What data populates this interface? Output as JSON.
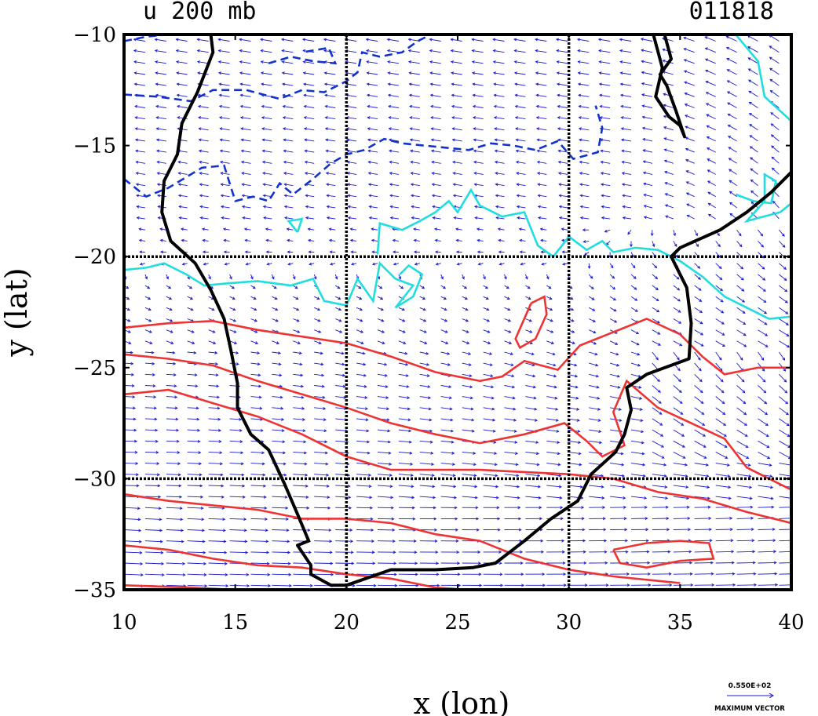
{
  "chart_data": {
    "type": "vector-contour-map",
    "title": "u 200 mb",
    "date_label": "011818",
    "xlabel": "x (lon)",
    "ylabel": "y (lat)",
    "xlim": [
      10,
      40
    ],
    "ylim": [
      -35,
      -10
    ],
    "xticks": [
      10,
      15,
      20,
      25,
      30,
      35,
      40
    ],
    "yticks": [
      -10,
      -15,
      -20,
      -25,
      -30,
      -35
    ],
    "grid_x": [
      20,
      30
    ],
    "grid_y": [
      -20,
      -30
    ],
    "vector_legend": {
      "value": "0.550E+02",
      "label": "MAXIMUM VECTOR"
    },
    "colors": {
      "coastline": "#000000",
      "grid": "#000000",
      "vectors": "#1a1acc",
      "positive_contour": "#ee3333",
      "zero_contour": "#22dddd",
      "negative_contour": "#1133cc"
    },
    "coastline": [
      [
        13.9,
        -10
      ],
      [
        14.0,
        -10.8
      ],
      [
        13.3,
        -12.6
      ],
      [
        12.6,
        -14.0
      ],
      [
        12.4,
        -15.4
      ],
      [
        11.8,
        -16.6
      ],
      [
        11.7,
        -18.0
      ],
      [
        12.1,
        -19.3
      ],
      [
        13.2,
        -20.3
      ],
      [
        13.9,
        -21.5
      ],
      [
        14.5,
        -22.8
      ],
      [
        14.8,
        -24.2
      ],
      [
        15.1,
        -25.7
      ],
      [
        15.1,
        -26.8
      ],
      [
        15.7,
        -28.0
      ],
      [
        16.5,
        -28.7
      ],
      [
        17.2,
        -30.2
      ],
      [
        17.8,
        -31.6
      ],
      [
        18.3,
        -32.8
      ],
      [
        17.8,
        -33.0
      ],
      [
        18.4,
        -33.9
      ],
      [
        18.4,
        -34.3
      ],
      [
        19.3,
        -34.8
      ],
      [
        20.0,
        -34.8
      ],
      [
        22.0,
        -34.1
      ],
      [
        24.0,
        -34.1
      ],
      [
        25.7,
        -34.0
      ],
      [
        26.7,
        -33.8
      ],
      [
        28.0,
        -32.8
      ],
      [
        29.2,
        -31.8
      ],
      [
        30.4,
        -31.0
      ],
      [
        31.0,
        -29.8
      ],
      [
        32.1,
        -28.8
      ],
      [
        32.5,
        -28.0
      ],
      [
        32.8,
        -26.9
      ],
      [
        32.6,
        -25.9
      ],
      [
        33.5,
        -25.3
      ],
      [
        35.4,
        -24.6
      ],
      [
        35.5,
        -23.0
      ],
      [
        35.3,
        -21.4
      ],
      [
        34.6,
        -20.0
      ],
      [
        35.0,
        -19.6
      ],
      [
        36.8,
        -18.8
      ],
      [
        38.0,
        -18.0
      ],
      [
        39.1,
        -17.1
      ],
      [
        40.0,
        -16.2
      ]
    ],
    "lake": [
      [
        34.3,
        -10.0
      ],
      [
        34.6,
        -11.1
      ],
      [
        34.1,
        -11.8
      ],
      [
        34.4,
        -12.3
      ],
      [
        34.8,
        -13.4
      ],
      [
        35.1,
        -14.3
      ],
      [
        35.2,
        -14.6
      ],
      [
        35.0,
        -14.1
      ],
      [
        34.5,
        -13.7
      ],
      [
        33.9,
        -12.8
      ],
      [
        34.2,
        -11.5
      ],
      [
        33.8,
        -10.0
      ]
    ],
    "contours": {
      "positive": [
        [
          [
            10.0,
            -23.2
          ],
          [
            12.0,
            -23.0
          ],
          [
            14.0,
            -22.9
          ],
          [
            16.0,
            -23.3
          ],
          [
            18.0,
            -23.6
          ],
          [
            20.0,
            -23.9
          ],
          [
            22.0,
            -24.5
          ],
          [
            24.0,
            -25.2
          ],
          [
            26.0,
            -25.6
          ],
          [
            27.0,
            -25.4
          ],
          [
            28.0,
            -24.7
          ],
          [
            29.5,
            -25.1
          ],
          [
            30.5,
            -24.0
          ],
          [
            32.0,
            -23.4
          ],
          [
            33.5,
            -22.8
          ],
          [
            35.0,
            -23.5
          ],
          [
            36.0,
            -24.5
          ],
          [
            37.0,
            -25.3
          ],
          [
            38.5,
            -25.0
          ],
          [
            40.0,
            -25.0
          ]
        ],
        [
          [
            10.0,
            -24.4
          ],
          [
            12.0,
            -24.6
          ],
          [
            14.0,
            -24.9
          ],
          [
            16.0,
            -25.6
          ],
          [
            18.0,
            -26.2
          ],
          [
            20.0,
            -26.8
          ],
          [
            22.0,
            -27.5
          ],
          [
            24.0,
            -28.0
          ],
          [
            26.0,
            -28.4
          ],
          [
            28.0,
            -28.0
          ],
          [
            29.8,
            -27.5
          ],
          [
            30.8,
            -28.3
          ],
          [
            31.5,
            -29.0
          ],
          [
            32.5,
            -28.5
          ],
          [
            32.0,
            -27.0
          ],
          [
            32.6,
            -25.6
          ],
          [
            34.0,
            -26.8
          ],
          [
            35.5,
            -27.5
          ],
          [
            37.0,
            -28.2
          ],
          [
            38.0,
            -29.5
          ],
          [
            40.0,
            -30.5
          ]
        ],
        [
          [
            10.0,
            -26.2
          ],
          [
            12.0,
            -26.0
          ],
          [
            14.0,
            -26.6
          ],
          [
            16.0,
            -27.2
          ],
          [
            18.0,
            -28.0
          ],
          [
            20.0,
            -29.0
          ],
          [
            22.0,
            -29.6
          ],
          [
            24.0,
            -29.6
          ],
          [
            26.0,
            -29.6
          ],
          [
            28.0,
            -29.7
          ],
          [
            30.0,
            -29.8
          ],
          [
            32.0,
            -30.0
          ],
          [
            34.0,
            -30.6
          ],
          [
            36.0,
            -30.9
          ],
          [
            38.0,
            -31.5
          ],
          [
            40.0,
            -32.0
          ]
        ],
        [
          [
            10.0,
            -30.7
          ],
          [
            12.0,
            -31.0
          ],
          [
            14.0,
            -31.2
          ],
          [
            16.0,
            -31.4
          ],
          [
            18.0,
            -31.8
          ],
          [
            20.0,
            -31.8
          ],
          [
            22.0,
            -32.0
          ],
          [
            24.0,
            -32.5
          ],
          [
            26.0,
            -32.8
          ],
          [
            28.0,
            -33.6
          ],
          [
            30.0,
            -34.1
          ],
          [
            32.0,
            -34.4
          ],
          [
            34.0,
            -34.6
          ],
          [
            35.0,
            -34.7
          ]
        ],
        [
          [
            10.0,
            -33.0
          ],
          [
            12.0,
            -33.2
          ],
          [
            14.0,
            -33.6
          ],
          [
            16.0,
            -33.9
          ],
          [
            18.0,
            -34.0
          ],
          [
            20.0,
            -34.3
          ],
          [
            22.0,
            -34.5
          ],
          [
            24.0,
            -34.9
          ],
          [
            25.5,
            -35.0
          ]
        ],
        [
          [
            10.0,
            -34.8
          ],
          [
            13.0,
            -34.9
          ],
          [
            15.0,
            -35.0
          ]
        ],
        [
          [
            28.3,
            -22.1
          ],
          [
            28.9,
            -21.8
          ],
          [
            29.0,
            -22.6
          ],
          [
            28.5,
            -23.7
          ],
          [
            27.8,
            -24.1
          ],
          [
            27.6,
            -23.7
          ],
          [
            28.3,
            -22.1
          ]
        ],
        [
          [
            32.0,
            -33.2
          ],
          [
            33.5,
            -32.9
          ],
          [
            35.0,
            -32.8
          ],
          [
            36.3,
            -32.9
          ],
          [
            36.5,
            -33.6
          ],
          [
            35.0,
            -33.7
          ],
          [
            33.5,
            -34.0
          ],
          [
            32.3,
            -33.8
          ],
          [
            32.0,
            -33.2
          ]
        ]
      ],
      "zero": [
        [
          [
            10.0,
            -20.6
          ],
          [
            11.0,
            -20.5
          ],
          [
            11.8,
            -20.3
          ],
          [
            12.8,
            -20.8
          ],
          [
            13.6,
            -21.3
          ],
          [
            14.7,
            -21.2
          ],
          [
            16.0,
            -21.1
          ],
          [
            17.5,
            -21.3
          ],
          [
            18.5,
            -21.0
          ],
          [
            19.0,
            -22.0
          ],
          [
            20.0,
            -22.2
          ],
          [
            20.5,
            -21.0
          ],
          [
            21.2,
            -22.0
          ],
          [
            21.5,
            -20.3
          ],
          [
            22.2,
            -21.0
          ],
          [
            23.0,
            -21.3
          ],
          [
            22.2,
            -22.3
          ],
          [
            23.0,
            -21.8
          ],
          [
            23.4,
            -20.8
          ],
          [
            22.8,
            -20.4
          ],
          [
            22.4,
            -20.8
          ]
        ],
        [
          [
            21.4,
            -19.9
          ],
          [
            21.5,
            -18.5
          ],
          [
            22.5,
            -18.8
          ],
          [
            23.3,
            -18.4
          ],
          [
            24.0,
            -18.0
          ],
          [
            24.6,
            -17.5
          ],
          [
            25.0,
            -18.0
          ],
          [
            25.6,
            -17.0
          ],
          [
            26.0,
            -17.7
          ],
          [
            27.0,
            -18.2
          ],
          [
            28.0,
            -18.0
          ],
          [
            28.6,
            -19.5
          ],
          [
            29.3,
            -20.0
          ],
          [
            30.0,
            -19.1
          ],
          [
            30.8,
            -19.7
          ],
          [
            31.5,
            -19.3
          ],
          [
            32.0,
            -19.8
          ],
          [
            33.0,
            -19.6
          ],
          [
            34.0,
            -19.7
          ],
          [
            35.0,
            -20.2
          ],
          [
            36.0,
            -20.9
          ],
          [
            37.0,
            -21.8
          ],
          [
            38.0,
            -22.3
          ],
          [
            39.0,
            -22.8
          ],
          [
            40.0,
            -22.7
          ]
        ],
        [
          [
            37.5,
            -10.0
          ],
          [
            38.5,
            -11.2
          ],
          [
            38.8,
            -12.8
          ],
          [
            40.0,
            -13.9
          ]
        ],
        [
          [
            37.5,
            -17.2
          ],
          [
            38.3,
            -17.5
          ],
          [
            39.1,
            -17.6
          ],
          [
            39.3,
            -16.6
          ],
          [
            38.8,
            -16.3
          ],
          [
            38.8,
            -17.5
          ],
          [
            38.0,
            -18.4
          ],
          [
            39.5,
            -18.0
          ],
          [
            40.0,
            -17.6
          ]
        ],
        [
          [
            17.8,
            -18.9
          ],
          [
            17.4,
            -18.4
          ],
          [
            18.0,
            -18.3
          ],
          [
            17.8,
            -18.9
          ]
        ]
      ],
      "negative": [
        [
          [
            10.0,
            -12.7
          ],
          [
            11.5,
            -12.8
          ],
          [
            13.0,
            -13.0
          ],
          [
            14.0,
            -12.5
          ],
          [
            15.5,
            -12.5
          ],
          [
            17.0,
            -12.9
          ],
          [
            18.0,
            -12.5
          ],
          [
            19.0,
            -12.6
          ],
          [
            20.0,
            -12.1
          ],
          [
            20.5,
            -11.7
          ],
          [
            20.7,
            -10.8
          ],
          [
            21.5,
            -11.0
          ],
          [
            22.5,
            -10.8
          ],
          [
            23.2,
            -10.3
          ],
          [
            23.8,
            -10.0
          ]
        ],
        [
          [
            10.0,
            -16.5
          ],
          [
            11.0,
            -17.3
          ],
          [
            12.0,
            -16.9
          ],
          [
            13.5,
            -16.0
          ],
          [
            14.5,
            -15.9
          ],
          [
            15.0,
            -17.5
          ],
          [
            15.8,
            -17.3
          ],
          [
            16.5,
            -17.5
          ],
          [
            17.0,
            -16.7
          ],
          [
            17.6,
            -17.2
          ],
          [
            18.5,
            -16.5
          ],
          [
            19.3,
            -15.8
          ],
          [
            20.0,
            -15.4
          ],
          [
            20.8,
            -15.2
          ],
          [
            21.7,
            -14.7
          ],
          [
            22.5,
            -14.9
          ],
          [
            23.5,
            -15.0
          ],
          [
            24.5,
            -15.1
          ],
          [
            25.5,
            -15.2
          ],
          [
            26.5,
            -14.9
          ],
          [
            27.5,
            -15.0
          ],
          [
            28.5,
            -15.2
          ],
          [
            29.5,
            -14.8
          ],
          [
            30.2,
            -15.6
          ],
          [
            31.3,
            -15.3
          ],
          [
            31.5,
            -14.2
          ],
          [
            31.2,
            -13.2
          ]
        ],
        [
          [
            10.0,
            -10.3
          ],
          [
            11.0,
            -10.1
          ],
          [
            12.0,
            -10.0
          ]
        ],
        [
          [
            16.5,
            -11.3
          ],
          [
            17.5,
            -11.0
          ],
          [
            18.5,
            -11.2
          ],
          [
            19.5,
            -11.3
          ],
          [
            19.2,
            -10.6
          ],
          [
            18.0,
            -10.8
          ]
        ]
      ]
    }
  }
}
